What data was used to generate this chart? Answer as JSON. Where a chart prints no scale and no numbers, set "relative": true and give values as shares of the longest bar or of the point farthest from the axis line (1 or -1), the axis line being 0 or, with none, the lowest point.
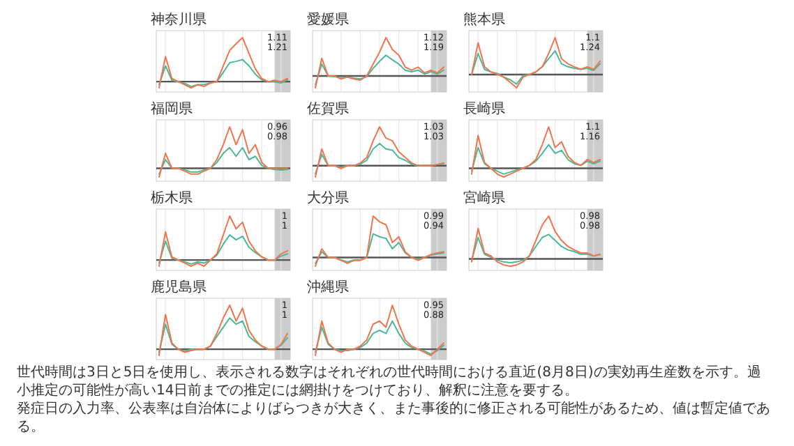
{
  "chart_data": [
    {
      "type": "line",
      "title": "神奈川県",
      "relative": true,
      "categories": [
        null,
        null,
        null,
        null,
        null,
        null,
        null,
        null,
        null,
        null,
        null,
        null,
        null,
        null,
        null,
        null,
        null,
        null,
        null,
        null,
        null
      ],
      "grid": true,
      "annotations": [
        "1.11",
        "1.21"
      ],
      "series": [
        {
          "color": "#48b99a",
          "values": [
            -0.07,
            0.36,
            0.03,
            0,
            -0.04,
            -0.11,
            -0.07,
            -0.07,
            -0.03,
            0,
            0.21,
            0.43,
            0.46,
            0.5,
            0.36,
            0.17,
            0.04,
            0,
            0,
            -0.03,
            0.04
          ]
        },
        {
          "color": "#f0744c",
          "values": [
            -0.14,
            0.57,
            0.07,
            0,
            -0.07,
            -0.14,
            -0.07,
            -0.11,
            -0.03,
            0,
            0.36,
            0.71,
            0.86,
            1,
            0.64,
            0.29,
            0.07,
            0,
            0.03,
            0,
            0.07
          ]
        }
      ]
    },
    {
      "type": "line",
      "title": "愛媛県",
      "relative": true,
      "categories": [
        null,
        null,
        null,
        null,
        null,
        null,
        null,
        null,
        null,
        null,
        null,
        null,
        null,
        null,
        null,
        null,
        null,
        null,
        null,
        null,
        null
      ],
      "grid": true,
      "annotations": [
        "1.12",
        "1.19"
      ],
      "series": [
        {
          "color": "#48b99a",
          "values": [
            -0.23,
            0.31,
            0,
            -0.02,
            -0.05,
            -0.03,
            -0.06,
            -0.08,
            -0.02,
            0.2,
            0.38,
            0.54,
            0.42,
            0.31,
            0.15,
            0.11,
            0.15,
            0.05,
            0.11,
            0.05,
            0.15
          ]
        },
        {
          "color": "#f0744c",
          "values": [
            -0.31,
            0.46,
            0,
            0,
            -0.08,
            -0.03,
            -0.08,
            -0.11,
            0,
            0.31,
            0.62,
            1,
            0.69,
            0.54,
            0.23,
            0.15,
            0.23,
            0.08,
            0.15,
            0.08,
            0.23
          ]
        }
      ]
    },
    {
      "type": "line",
      "title": "熊本県",
      "relative": true,
      "categories": [
        null,
        null,
        null,
        null,
        null,
        null,
        null,
        null,
        null,
        null,
        null,
        null,
        null,
        null,
        null,
        null,
        null,
        null,
        null,
        null,
        null
      ],
      "grid": true,
      "annotations": [
        "1.1",
        "1.24"
      ],
      "series": [
        {
          "color": "#48b99a",
          "values": [
            0,
            0.57,
            0.14,
            0.07,
            0.03,
            -0.07,
            -0.14,
            -0.26,
            -0.03,
            0,
            0.07,
            0.21,
            0.43,
            0.64,
            0.29,
            0.21,
            0.17,
            0.14,
            0.17,
            0.11,
            0.29
          ]
        },
        {
          "color": "#f0744c",
          "values": [
            0,
            0.86,
            0.21,
            0.07,
            0,
            -0.07,
            -0.21,
            -0.36,
            -0.07,
            0,
            0.07,
            0.21,
            0.57,
            1,
            0.43,
            0.29,
            0.21,
            0.14,
            0.21,
            0.14,
            0.36
          ]
        }
      ]
    },
    {
      "type": "line",
      "title": "福岡県",
      "relative": true,
      "categories": [
        null,
        null,
        null,
        null,
        null,
        null,
        null,
        null,
        null,
        null,
        null,
        null,
        null,
        null,
        null,
        null,
        null,
        null,
        null,
        null,
        null
      ],
      "grid": true,
      "annotations": [
        "0.96",
        "0.98"
      ],
      "series": [
        {
          "color": "#48b99a",
          "values": [
            -0.14,
            0.21,
            0,
            0,
            -0.04,
            -0.09,
            -0.09,
            -0.04,
            0,
            0.14,
            0.36,
            0.5,
            0.29,
            0.5,
            0.21,
            0.29,
            0.07,
            0,
            -0.03,
            -0.04,
            -0.03
          ]
        },
        {
          "color": "#f0744c",
          "values": [
            -0.21,
            0.36,
            0,
            0,
            -0.07,
            -0.14,
            -0.14,
            -0.07,
            0,
            0.21,
            0.57,
            1,
            0.57,
            0.93,
            0.36,
            0.57,
            0.14,
            0,
            0,
            0,
            0
          ]
        }
      ]
    },
    {
      "type": "line",
      "title": "佐賀県",
      "relative": true,
      "categories": [
        null,
        null,
        null,
        null,
        null,
        null,
        null,
        null,
        null,
        null,
        null,
        null,
        null,
        null,
        null,
        null,
        null,
        null,
        null,
        null,
        null
      ],
      "grid": true,
      "annotations": [
        "1.03",
        "1.03"
      ],
      "series": [
        {
          "color": "#48b99a",
          "values": [
            -0.21,
            0.29,
            0,
            0,
            -0.04,
            0,
            0,
            0.04,
            0.14,
            0.43,
            0.57,
            0.43,
            0.4,
            0.21,
            0.14,
            0.04,
            0,
            0,
            0,
            0.03,
            0.06
          ]
        },
        {
          "color": "#f0744c",
          "values": [
            -0.29,
            0.43,
            0,
            0,
            -0.07,
            0,
            0,
            0.07,
            0.21,
            0.64,
            1,
            0.71,
            0.64,
            0.36,
            0.21,
            0.07,
            0,
            0,
            0,
            0.03,
            0.07
          ]
        }
      ]
    },
    {
      "type": "line",
      "title": "長崎県",
      "relative": true,
      "categories": [
        null,
        null,
        null,
        null,
        null,
        null,
        null,
        null,
        null,
        null,
        null,
        null,
        null,
        null,
        null,
        null,
        null,
        null,
        null,
        null,
        null
      ],
      "grid": true,
      "annotations": [
        "1.1",
        "1.16"
      ],
      "series": [
        {
          "color": "#48b99a",
          "values": [
            -0.07,
            0.5,
            0.11,
            0,
            -0.07,
            -0.14,
            -0.09,
            -0.04,
            0,
            0.07,
            0.17,
            0.36,
            0.57,
            0.36,
            0.43,
            0.21,
            0.11,
            0.07,
            0.17,
            0.11,
            0.17
          ]
        },
        {
          "color": "#f0744c",
          "values": [
            -0.14,
            0.79,
            0.14,
            0,
            -0.14,
            -0.21,
            -0.14,
            -0.07,
            0,
            0.07,
            0.21,
            0.57,
            1,
            0.5,
            0.64,
            0.29,
            0.14,
            0.07,
            0.21,
            0.14,
            0.21
          ]
        }
      ]
    },
    {
      "type": "line",
      "title": "栃木県",
      "relative": true,
      "categories": [
        null,
        null,
        null,
        null,
        null,
        null,
        null,
        null,
        null,
        null,
        null,
        null,
        null,
        null,
        null,
        null,
        null,
        null,
        null,
        null,
        null
      ],
      "grid": true,
      "annotations": [
        "1",
        "1"
      ],
      "series": [
        {
          "color": "#48b99a",
          "values": [
            -0.07,
            0.43,
            0.04,
            0,
            -0.04,
            -0.09,
            -0.04,
            -0.07,
            0,
            0.11,
            0.36,
            0.57,
            0.46,
            0.54,
            0.29,
            0.17,
            0.07,
            0,
            0,
            0.09,
            0.14
          ]
        },
        {
          "color": "#f0744c",
          "values": [
            -0.14,
            0.64,
            0.07,
            0,
            -0.07,
            -0.14,
            -0.07,
            -0.14,
            0,
            0.14,
            0.57,
            1,
            0.71,
            0.86,
            0.43,
            0.21,
            0.07,
            0,
            0,
            0.14,
            0.21
          ]
        }
      ]
    },
    {
      "type": "line",
      "title": "大分県",
      "relative": true,
      "categories": [
        null,
        null,
        null,
        null,
        null,
        null,
        null,
        null,
        null,
        null,
        null,
        null,
        null,
        null,
        null,
        null,
        null,
        null,
        null,
        null,
        null
      ],
      "grid": true,
      "annotations": [
        "0.99",
        "0.94"
      ],
      "series": [
        {
          "color": "#48b99a",
          "values": [
            -0.14,
            0.14,
            0,
            0,
            -0.06,
            -0.11,
            -0.06,
            -0.06,
            0,
            0.57,
            0.5,
            0.46,
            0.21,
            0.36,
            0.11,
            0,
            -0.04,
            0,
            0.06,
            0.09,
            0.11
          ]
        },
        {
          "color": "#f0744c",
          "values": [
            -0.21,
            0.21,
            0,
            0,
            -0.07,
            -0.14,
            -0.07,
            -0.07,
            0,
            1,
            0.86,
            0.79,
            0.36,
            0.5,
            0.14,
            0,
            -0.07,
            0,
            0.07,
            0.11,
            0.14
          ]
        }
      ]
    },
    {
      "type": "line",
      "title": "宮崎県",
      "relative": true,
      "categories": [
        null,
        null,
        null,
        null,
        null,
        null,
        null,
        null,
        null,
        null,
        null,
        null,
        null,
        null,
        null,
        null,
        null,
        null,
        null,
        null,
        null
      ],
      "grid": true,
      "annotations": [
        "0.98",
        "0.98"
      ],
      "series": [
        {
          "color": "#48b99a",
          "values": [
            -0.03,
            0.5,
            0.11,
            0.04,
            -0.03,
            -0.07,
            -0.09,
            -0.07,
            -0.03,
            0.07,
            0.29,
            0.5,
            0.57,
            0.43,
            0.29,
            0.21,
            0.17,
            0.11,
            0.11,
            0.07,
            0.1
          ]
        },
        {
          "color": "#f0744c",
          "values": [
            -0.07,
            0.71,
            0.14,
            0.07,
            -0.07,
            -0.14,
            -0.17,
            -0.14,
            -0.07,
            0.07,
            0.43,
            0.79,
            1,
            0.64,
            0.43,
            0.29,
            0.21,
            0.14,
            0.14,
            0.07,
            0.11
          ]
        }
      ]
    },
    {
      "type": "line",
      "title": "鹿児島県",
      "relative": true,
      "categories": [
        null,
        null,
        null,
        null,
        null,
        null,
        null,
        null,
        null,
        null,
        null,
        null,
        null,
        null,
        null,
        null,
        null,
        null,
        null,
        null,
        null
      ],
      "grid": true,
      "annotations": [
        "1",
        "1"
      ],
      "series": [
        {
          "color": "#48b99a",
          "values": [
            -0.07,
            0.57,
            0.11,
            0,
            -0.04,
            0,
            0,
            0,
            0.07,
            0.29,
            0.5,
            0.71,
            0.57,
            0.64,
            0.29,
            0.17,
            0.07,
            0,
            0,
            0.09,
            0.26
          ]
        },
        {
          "color": "#f0744c",
          "values": [
            -0.14,
            0.79,
            0.14,
            0,
            -0.07,
            -0.03,
            0,
            0,
            0.07,
            0.36,
            0.71,
            1,
            0.64,
            0.93,
            0.43,
            0.21,
            0.07,
            0,
            0,
            0.11,
            0.36
          ]
        }
      ]
    },
    {
      "type": "line",
      "title": "沖縄県",
      "relative": true,
      "categories": [
        null,
        null,
        null,
        null,
        null,
        null,
        null,
        null,
        null,
        null,
        null,
        null,
        null,
        null,
        null,
        null,
        null,
        null,
        null,
        null,
        null
      ],
      "grid": true,
      "annotations": [
        "0.95",
        "0.88"
      ],
      "series": [
        {
          "color": "#48b99a",
          "values": [
            -0.07,
            0.5,
            0.11,
            0,
            -0.03,
            -0.03,
            0,
            0.04,
            0.14,
            0.36,
            0.43,
            0.36,
            0.64,
            0.36,
            0.14,
            0.04,
            0,
            -0.04,
            -0.11,
            -0.03,
            0.09
          ]
        },
        {
          "color": "#f0744c",
          "values": [
            -0.14,
            0.64,
            0.14,
            0,
            -0.07,
            0,
            0,
            0.07,
            0.21,
            0.57,
            0.64,
            0.5,
            1,
            0.57,
            0.21,
            0.07,
            0,
            -0.07,
            -0.14,
            0,
            0.14
          ]
        }
      ]
    },
    {
      "type": "other",
      "annotations": [
        "世代時間は3日と5日を使用し、表示される数字はそれぞれの世代時間における直近(8月8日)の実効再生産数を示す。過小推定の可能性が高い14日前までの推定には網掛けをつけており、解釈に注意を要する。",
        "発症日の入力率、公表率は自治体によりばらつきが大きく、また事後的に修正される可能性があるため、値は暫定値である。"
      ]
    }
  ]
}
